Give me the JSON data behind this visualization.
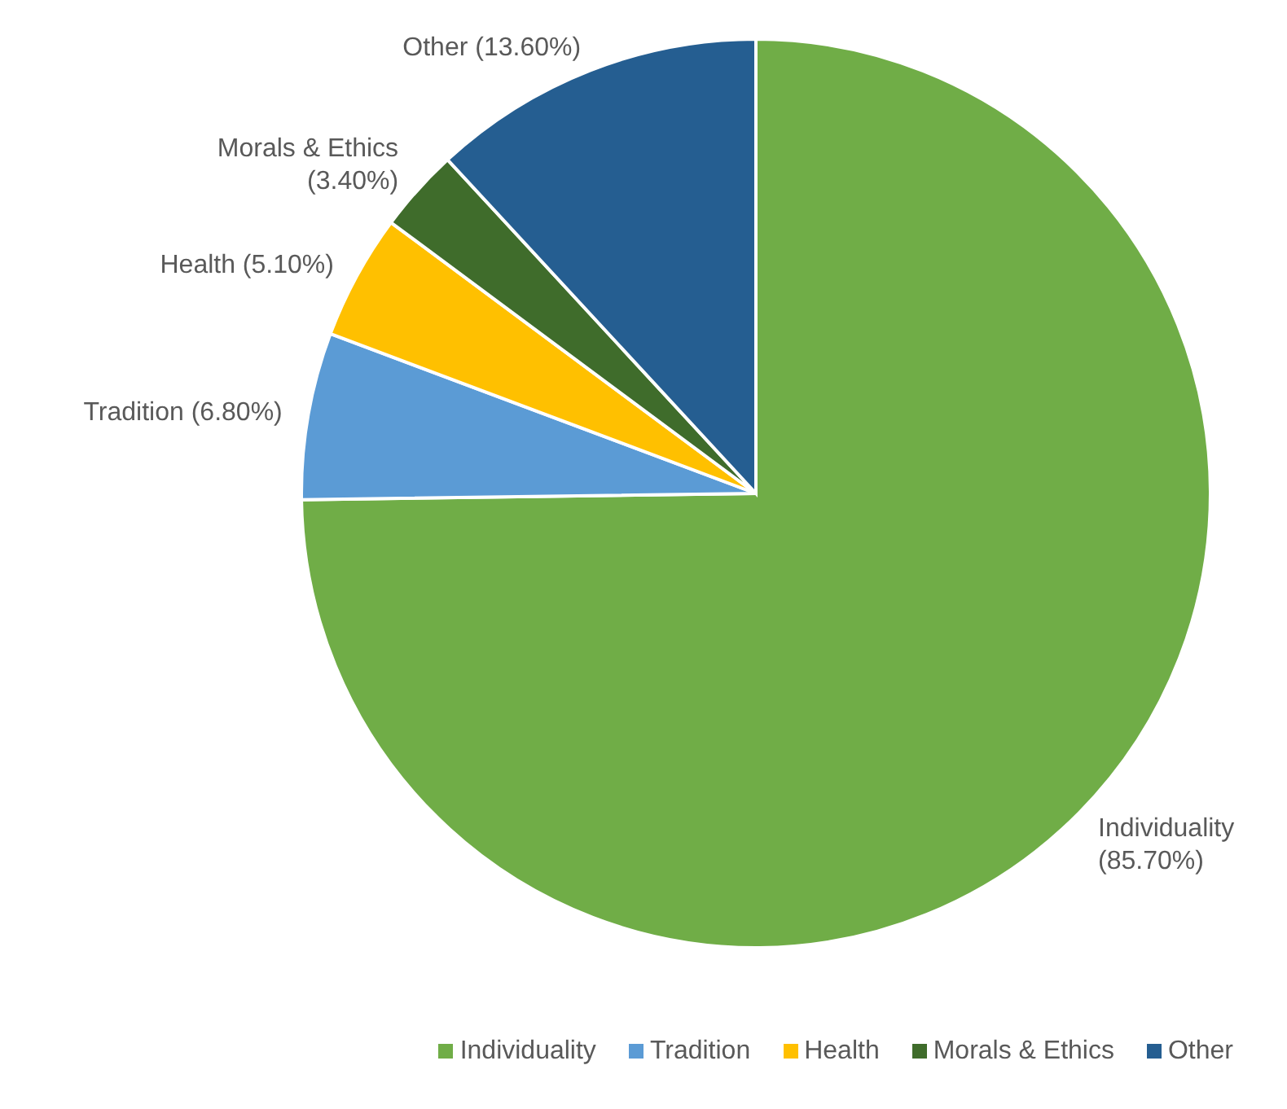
{
  "chart_data": {
    "type": "pie",
    "categories": [
      "Individuality",
      "Tradition",
      "Health",
      "Morals & Ethics",
      "Other"
    ],
    "values": [
      85.7,
      6.8,
      5.1,
      3.4,
      13.6
    ],
    "value_labels": [
      "(85.70%)",
      "(6.80%)",
      "(5.10%)",
      "(3.40%)",
      "(13.60%)"
    ],
    "colors": [
      "#70ad47",
      "#5b9bd5",
      "#ffc000",
      "#3f6c2b",
      "#255e91"
    ],
    "legend": "bottom"
  }
}
